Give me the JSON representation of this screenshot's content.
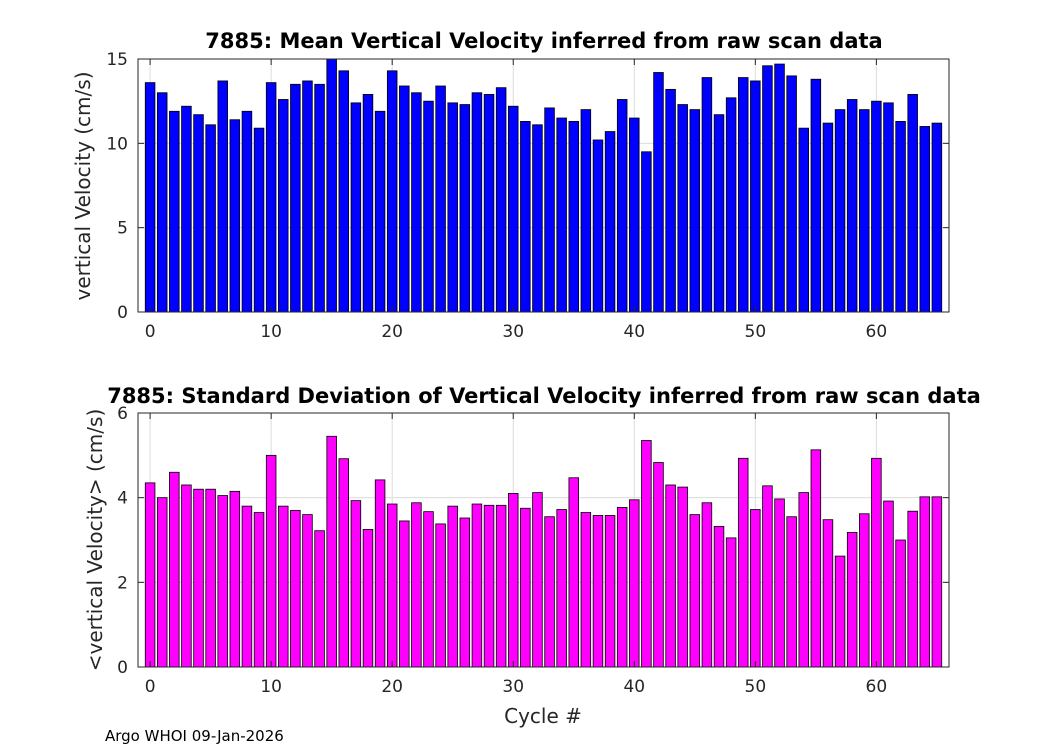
{
  "chart_data": [
    {
      "type": "bar",
      "title": "7885: Mean Vertical Velocity inferred from raw scan data",
      "xlabel": "",
      "ylabel": "vertical Velocity (cm/s)",
      "xlim": [
        -1,
        66
      ],
      "ylim": [
        0,
        15
      ],
      "xticks": [
        0,
        10,
        20,
        30,
        40,
        50,
        60
      ],
      "yticks": [
        0,
        5,
        10,
        15
      ],
      "color": "#0000ff",
      "grid": true,
      "x": [
        0,
        1,
        2,
        3,
        4,
        5,
        6,
        7,
        8,
        9,
        10,
        11,
        12,
        13,
        14,
        15,
        16,
        17,
        18,
        19,
        20,
        21,
        22,
        23,
        24,
        25,
        26,
        27,
        28,
        29,
        30,
        31,
        32,
        33,
        34,
        35,
        36,
        37,
        38,
        39,
        40,
        41,
        42,
        43,
        44,
        45,
        46,
        47,
        48,
        49,
        50,
        51,
        52,
        53,
        54,
        55,
        56,
        57,
        58,
        59,
        60,
        61,
        62,
        63,
        64,
        65
      ],
      "values": [
        13.6,
        13.0,
        11.9,
        12.2,
        11.7,
        11.1,
        13.7,
        11.4,
        11.9,
        10.9,
        13.6,
        12.6,
        13.5,
        13.7,
        13.5,
        15.3,
        14.3,
        12.4,
        12.9,
        11.9,
        14.3,
        13.4,
        13.0,
        12.5,
        13.4,
        12.4,
        12.3,
        13.0,
        12.9,
        13.3,
        12.2,
        11.3,
        11.1,
        12.1,
        11.5,
        11.3,
        12.0,
        10.2,
        10.7,
        12.6,
        11.5,
        9.5,
        14.2,
        13.2,
        12.3,
        12.0,
        13.9,
        11.7,
        12.7,
        13.9,
        13.7,
        14.6,
        14.7,
        14.0,
        10.9,
        13.8,
        11.2,
        12.0,
        12.6,
        12.0,
        12.5,
        12.4,
        11.3,
        12.9,
        11.0,
        11.2
      ]
    },
    {
      "type": "bar",
      "title": "7885: Standard Deviation of Vertical Velocity inferred from raw scan data",
      "xlabel": "Cycle #",
      "ylabel": "<vertical Velocity> (cm/s)",
      "xlim": [
        -1,
        66
      ],
      "ylim": [
        0,
        6
      ],
      "xticks": [
        0,
        10,
        20,
        30,
        40,
        50,
        60
      ],
      "yticks": [
        0,
        2,
        4,
        6
      ],
      "color": "#ff00ff",
      "grid": true,
      "x": [
        0,
        1,
        2,
        3,
        4,
        5,
        6,
        7,
        8,
        9,
        10,
        11,
        12,
        13,
        14,
        15,
        16,
        17,
        18,
        19,
        20,
        21,
        22,
        23,
        24,
        25,
        26,
        27,
        28,
        29,
        30,
        31,
        32,
        33,
        34,
        35,
        36,
        37,
        38,
        39,
        40,
        41,
        42,
        43,
        44,
        45,
        46,
        47,
        48,
        49,
        50,
        51,
        52,
        53,
        54,
        55,
        56,
        57,
        58,
        59,
        60,
        61,
        62,
        63,
        64,
        65
      ],
      "values": [
        4.35,
        4.0,
        4.6,
        4.3,
        4.2,
        4.2,
        4.05,
        4.15,
        3.8,
        3.65,
        5.0,
        3.8,
        3.7,
        3.6,
        3.22,
        5.45,
        4.92,
        3.93,
        3.25,
        4.42,
        3.85,
        3.45,
        3.88,
        3.67,
        3.38,
        3.8,
        3.52,
        3.85,
        3.82,
        3.82,
        4.1,
        3.75,
        4.12,
        3.55,
        3.72,
        4.47,
        3.65,
        3.58,
        3.58,
        3.77,
        3.95,
        5.35,
        4.83,
        4.3,
        4.25,
        3.6,
        3.88,
        3.32,
        3.05,
        4.93,
        3.72,
        4.28,
        3.97,
        3.55,
        4.12,
        5.13,
        3.48,
        2.62,
        3.18,
        3.62,
        4.93,
        3.92,
        3.0,
        3.68,
        4.02,
        4.02
      ]
    }
  ],
  "footer": "Argo WHOI 09-Jan-2026"
}
